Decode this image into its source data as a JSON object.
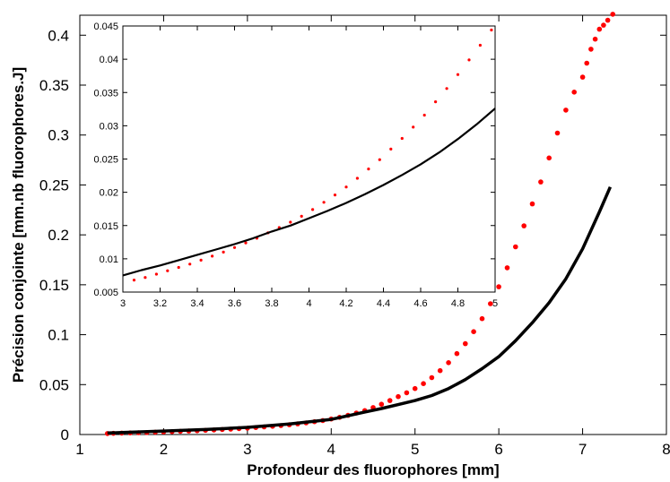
{
  "chart_data": [
    {
      "type": "scatter",
      "title": "",
      "xlabel": "Profondeur des fluorophores [mm]",
      "ylabel": "Précision conjointe [mm.nb fluorophores.J]",
      "xlim": [
        1,
        8
      ],
      "ylim": [
        0,
        0.42
      ],
      "xticks": [
        "1",
        "2",
        "3",
        "4",
        "5",
        "6",
        "7",
        "8"
      ],
      "yticks": [
        "0",
        "0.05",
        "0.1",
        "0.15",
        "0.2",
        "0.25",
        "0.3",
        "0.35",
        "0.4"
      ],
      "grid": false,
      "series": [
        {
          "style": "dots",
          "color": "#ff0000",
          "x": [
            1.33,
            1.4,
            1.5,
            1.6,
            1.7,
            1.8,
            1.9,
            2.0,
            2.1,
            2.2,
            2.3,
            2.4,
            2.5,
            2.6,
            2.7,
            2.8,
            2.9,
            3.0,
            3.1,
            3.2,
            3.3,
            3.4,
            3.5,
            3.6,
            3.7,
            3.8,
            3.9,
            4.0,
            4.1,
            4.2,
            4.3,
            4.4,
            4.5,
            4.6,
            4.7,
            4.8,
            4.9,
            5.0,
            5.1,
            5.2,
            5.3,
            5.4,
            5.5,
            5.6,
            5.7,
            5.8,
            5.9,
            6.0,
            6.1,
            6.2,
            6.3,
            6.4,
            6.5,
            6.6,
            6.7,
            6.8,
            6.9,
            7.0,
            7.05,
            7.1,
            7.15,
            7.2,
            7.25,
            7.3,
            7.36
          ],
          "y": [
            0.001,
            0.0012,
            0.0014,
            0.0016,
            0.0018,
            0.002,
            0.0023,
            0.0026,
            0.0029,
            0.0032,
            0.0035,
            0.0038,
            0.0042,
            0.0046,
            0.005,
            0.0054,
            0.0059,
            0.0064,
            0.007,
            0.0076,
            0.0083,
            0.009,
            0.0098,
            0.0107,
            0.0117,
            0.0128,
            0.014,
            0.0155,
            0.0172,
            0.0192,
            0.0215,
            0.024,
            0.027,
            0.0303,
            0.034,
            0.038,
            0.0418,
            0.046,
            0.051,
            0.057,
            0.064,
            0.072,
            0.081,
            0.091,
            0.103,
            0.116,
            0.131,
            0.148,
            0.167,
            0.188,
            0.209,
            0.231,
            0.253,
            0.277,
            0.302,
            0.325,
            0.343,
            0.358,
            0.372,
            0.386,
            0.396,
            0.406,
            0.41,
            0.415,
            0.421
          ]
        },
        {
          "style": "line",
          "color": "#000000",
          "x": [
            1.33,
            1.5,
            2.0,
            2.5,
            3.0,
            3.5,
            4.0,
            4.2,
            4.4,
            4.6,
            4.8,
            5.0,
            5.2,
            5.4,
            5.6,
            5.8,
            6.0,
            6.2,
            6.4,
            6.6,
            6.8,
            7.0,
            7.2,
            7.33
          ],
          "y": [
            0.0015,
            0.002,
            0.0035,
            0.005,
            0.0072,
            0.0105,
            0.0152,
            0.0188,
            0.0225,
            0.026,
            0.03,
            0.034,
            0.039,
            0.046,
            0.055,
            0.066,
            0.078,
            0.094,
            0.112,
            0.132,
            0.156,
            0.186,
            0.223,
            0.248
          ]
        }
      ]
    },
    {
      "type": "scatter",
      "title": "",
      "xlabel": "",
      "ylabel": "",
      "xlim": [
        3,
        5
      ],
      "ylim": [
        0.005,
        0.045
      ],
      "xticks": [
        "3",
        "3.2",
        "3.4",
        "3.6",
        "3.8",
        "4",
        "4.2",
        "4.4",
        "4.6",
        "4.8",
        "5"
      ],
      "yticks": [
        "0.005",
        "0.01",
        "0.015",
        "0.02",
        "0.025",
        "0.03",
        "0.035",
        "0.04",
        "0.045"
      ],
      "grid": false,
      "series": [
        {
          "style": "dots",
          "color": "#ff0000",
          "x": [
            3.06,
            3.12,
            3.18,
            3.24,
            3.3,
            3.36,
            3.42,
            3.48,
            3.54,
            3.6,
            3.66,
            3.72,
            3.78,
            3.84,
            3.9,
            3.96,
            4.02,
            4.08,
            4.14,
            4.2,
            4.26,
            4.32,
            4.38,
            4.44,
            4.5,
            4.56,
            4.62,
            4.68,
            4.74,
            4.8,
            4.86,
            4.92,
            4.98
          ],
          "y": [
            0.0068,
            0.0072,
            0.0077,
            0.0082,
            0.0087,
            0.0092,
            0.0098,
            0.0104,
            0.011,
            0.0117,
            0.0124,
            0.0131,
            0.0139,
            0.0147,
            0.0155,
            0.0164,
            0.0174,
            0.0185,
            0.0196,
            0.0208,
            0.0221,
            0.0235,
            0.0249,
            0.0265,
            0.0281,
            0.0298,
            0.0316,
            0.0336,
            0.0356,
            0.0377,
            0.0399,
            0.0421,
            0.0444
          ]
        },
        {
          "style": "line",
          "color": "#000000",
          "x": [
            3.0,
            3.1,
            3.2,
            3.3,
            3.4,
            3.5,
            3.6,
            3.7,
            3.8,
            3.9,
            4.0,
            4.1,
            4.2,
            4.3,
            4.4,
            4.5,
            4.6,
            4.7,
            4.8,
            4.9,
            5.0
          ],
          "y": [
            0.0075,
            0.0083,
            0.009,
            0.0098,
            0.0106,
            0.0114,
            0.0122,
            0.0131,
            0.0141,
            0.015,
            0.0161,
            0.0172,
            0.0184,
            0.0197,
            0.0211,
            0.0226,
            0.0242,
            0.026,
            0.028,
            0.0302,
            0.0326
          ]
        }
      ]
    }
  ]
}
